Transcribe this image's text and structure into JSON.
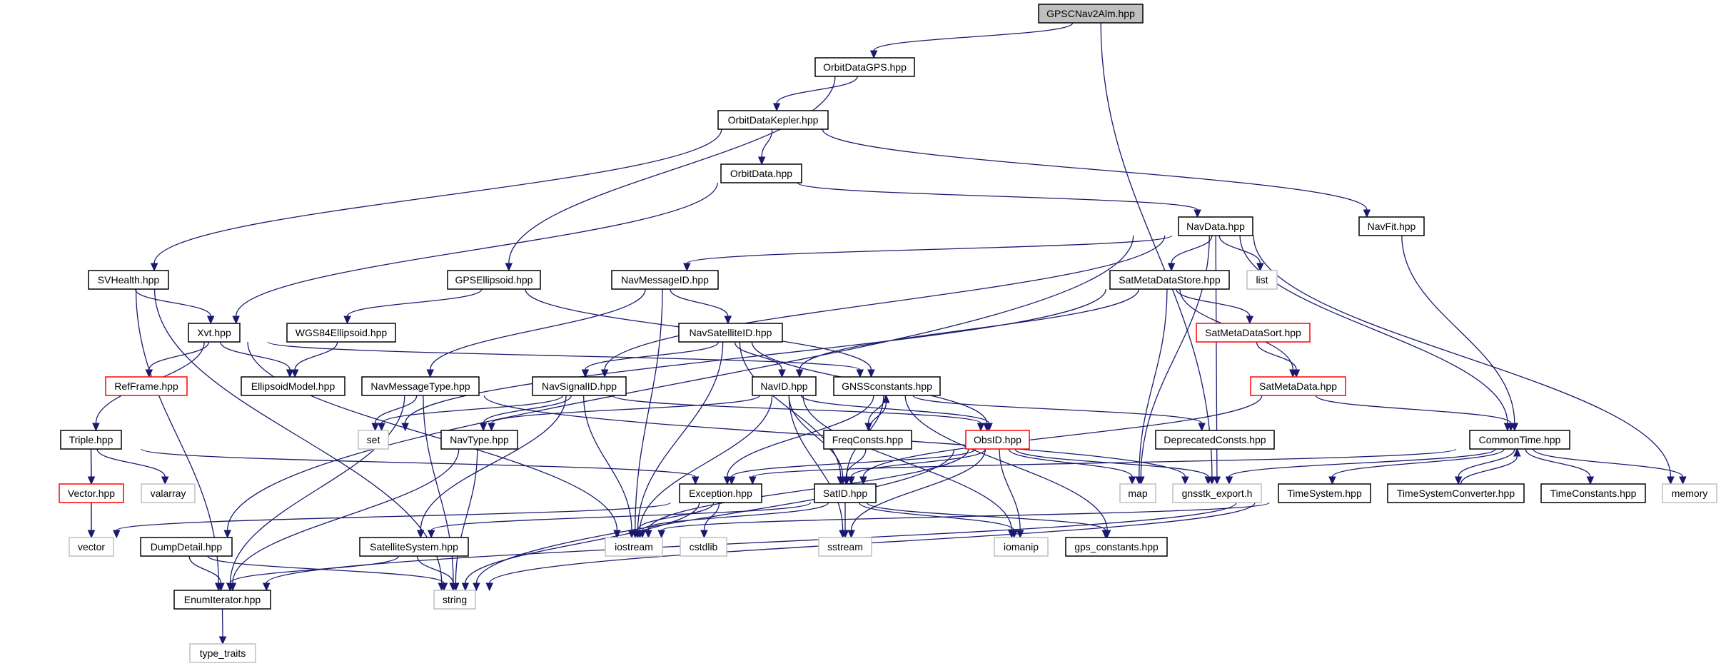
{
  "graph": {
    "edge_color": "#191970",
    "root_fill": "#bfbfbf",
    "nodes": [
      {
        "id": "GPSCNav2Alm",
        "label": "GPSCNav2Alm.hpp",
        "kind": "root"
      },
      {
        "id": "OrbitDataGPS",
        "label": "OrbitDataGPS.hpp",
        "kind": "project"
      },
      {
        "id": "OrbitDataKepler",
        "label": "OrbitDataKepler.hpp",
        "kind": "project"
      },
      {
        "id": "OrbitData",
        "label": "OrbitData.hpp",
        "kind": "project"
      },
      {
        "id": "NavData",
        "label": "NavData.hpp",
        "kind": "project"
      },
      {
        "id": "NavFit",
        "label": "NavFit.hpp",
        "kind": "project"
      },
      {
        "id": "SVHealth",
        "label": "SVHealth.hpp",
        "kind": "project"
      },
      {
        "id": "GPSEllipsoid",
        "label": "GPSEllipsoid.hpp",
        "kind": "project"
      },
      {
        "id": "NavMessageID",
        "label": "NavMessageID.hpp",
        "kind": "project"
      },
      {
        "id": "SatMetaDataStore",
        "label": "SatMetaDataStore.hpp",
        "kind": "project"
      },
      {
        "id": "list",
        "label": "list",
        "kind": "system"
      },
      {
        "id": "Xvt",
        "label": "Xvt.hpp",
        "kind": "project"
      },
      {
        "id": "WGS84Ellipsoid",
        "label": "WGS84Ellipsoid.hpp",
        "kind": "project"
      },
      {
        "id": "NavSatelliteID",
        "label": "NavSatelliteID.hpp",
        "kind": "project"
      },
      {
        "id": "SatMetaDataSort",
        "label": "SatMetaDataSort.hpp",
        "kind": "red"
      },
      {
        "id": "RefFrame",
        "label": "RefFrame.hpp",
        "kind": "red"
      },
      {
        "id": "EllipsoidModel",
        "label": "EllipsoidModel.hpp",
        "kind": "project"
      },
      {
        "id": "NavMessageType",
        "label": "NavMessageType.hpp",
        "kind": "project"
      },
      {
        "id": "NavSignalID",
        "label": "NavSignalID.hpp",
        "kind": "project"
      },
      {
        "id": "NavID",
        "label": "NavID.hpp",
        "kind": "project"
      },
      {
        "id": "GNSSconstants",
        "label": "GNSSconstants.hpp",
        "kind": "project"
      },
      {
        "id": "SatMetaData",
        "label": "SatMetaData.hpp",
        "kind": "red"
      },
      {
        "id": "Triple",
        "label": "Triple.hpp",
        "kind": "project"
      },
      {
        "id": "set",
        "label": "set",
        "kind": "system"
      },
      {
        "id": "NavType",
        "label": "NavType.hpp",
        "kind": "project"
      },
      {
        "id": "FreqConsts",
        "label": "FreqConsts.hpp",
        "kind": "project"
      },
      {
        "id": "ObsID",
        "label": "ObsID.hpp",
        "kind": "red"
      },
      {
        "id": "DeprecatedConsts",
        "label": "DeprecatedConsts.hpp",
        "kind": "project"
      },
      {
        "id": "CommonTime",
        "label": "CommonTime.hpp",
        "kind": "project"
      },
      {
        "id": "Vector",
        "label": "Vector.hpp",
        "kind": "red"
      },
      {
        "id": "valarray",
        "label": "valarray",
        "kind": "system"
      },
      {
        "id": "Exception",
        "label": "Exception.hpp",
        "kind": "project"
      },
      {
        "id": "SatID",
        "label": "SatID.hpp",
        "kind": "project"
      },
      {
        "id": "map",
        "label": "map",
        "kind": "system"
      },
      {
        "id": "gnsstk_export",
        "label": "gnsstk_export.h",
        "kind": "system"
      },
      {
        "id": "TimeSystem",
        "label": "TimeSystem.hpp",
        "kind": "project"
      },
      {
        "id": "TimeSystemConverter",
        "label": "TimeSystemConverter.hpp",
        "kind": "project"
      },
      {
        "id": "TimeConstants",
        "label": "TimeConstants.hpp",
        "kind": "project"
      },
      {
        "id": "memory",
        "label": "memory",
        "kind": "system"
      },
      {
        "id": "vector",
        "label": "vector",
        "kind": "system"
      },
      {
        "id": "DumpDetail",
        "label": "DumpDetail.hpp",
        "kind": "project"
      },
      {
        "id": "SatelliteSystem",
        "label": "SatelliteSystem.hpp",
        "kind": "project"
      },
      {
        "id": "iostream",
        "label": "iostream",
        "kind": "system"
      },
      {
        "id": "cstdlib",
        "label": "cstdlib",
        "kind": "system"
      },
      {
        "id": "sstream",
        "label": "sstream",
        "kind": "system"
      },
      {
        "id": "iomanip",
        "label": "iomanip",
        "kind": "system"
      },
      {
        "id": "gps_constants",
        "label": "gps_constants.hpp",
        "kind": "project"
      },
      {
        "id": "EnumIterator",
        "label": "EnumIterator.hpp",
        "kind": "project"
      },
      {
        "id": "string",
        "label": "string",
        "kind": "system"
      },
      {
        "id": "type_traits",
        "label": "type_traits",
        "kind": "system"
      }
    ],
    "edges": [
      [
        "GPSCNav2Alm",
        "OrbitDataGPS"
      ],
      [
        "GPSCNav2Alm",
        "gnsstk_export"
      ],
      [
        "OrbitDataGPS",
        "OrbitDataKepler"
      ],
      [
        "OrbitDataGPS",
        "GPSEllipsoid"
      ],
      [
        "OrbitDataKepler",
        "OrbitData"
      ],
      [
        "OrbitDataKepler",
        "SVHealth"
      ],
      [
        "OrbitDataKepler",
        "NavFit"
      ],
      [
        "OrbitData",
        "NavData"
      ],
      [
        "OrbitData",
        "Xvt"
      ],
      [
        "NavData",
        "SatMetaDataStore"
      ],
      [
        "NavData",
        "list"
      ],
      [
        "NavData",
        "NavMessageID"
      ],
      [
        "NavData",
        "NavSignalID"
      ],
      [
        "NavData",
        "DumpDetail"
      ],
      [
        "NavData",
        "CommonTime"
      ],
      [
        "NavData",
        "memory"
      ],
      [
        "NavData",
        "gnsstk_export"
      ],
      [
        "NavData",
        "map"
      ],
      [
        "NavFit",
        "CommonTime"
      ],
      [
        "SVHealth",
        "Xvt"
      ],
      [
        "SVHealth",
        "EnumIterator"
      ],
      [
        "SVHealth",
        "string"
      ],
      [
        "GPSEllipsoid",
        "WGS84Ellipsoid"
      ],
      [
        "GPSEllipsoid",
        "GNSSconstants"
      ],
      [
        "NavMessageID",
        "NavSatelliteID"
      ],
      [
        "NavMessageID",
        "NavMessageType"
      ],
      [
        "NavMessageID",
        "iostream"
      ],
      [
        "SatMetaDataStore",
        "SatMetaDataSort"
      ],
      [
        "SatMetaDataStore",
        "SatMetaData"
      ],
      [
        "SatMetaDataStore",
        "NavID"
      ],
      [
        "SatMetaDataStore",
        "set"
      ],
      [
        "SatMetaDataStore",
        "map"
      ],
      [
        "Xvt",
        "RefFrame"
      ],
      [
        "Xvt",
        "EllipsoidModel"
      ],
      [
        "Xvt",
        "Triple"
      ],
      [
        "Xvt",
        "GNSSconstants"
      ],
      [
        "Xvt",
        "iostream"
      ],
      [
        "WGS84Ellipsoid",
        "EllipsoidModel"
      ],
      [
        "NavSatelliteID",
        "NavSignalID"
      ],
      [
        "NavSatelliteID",
        "NavID"
      ],
      [
        "NavSatelliteID",
        "SatID"
      ],
      [
        "NavSatelliteID",
        "ObsID"
      ],
      [
        "NavSatelliteID",
        "iostream"
      ],
      [
        "SatMetaDataSort",
        "SatMetaData"
      ],
      [
        "NavMessageType",
        "set"
      ],
      [
        "NavMessageType",
        "string"
      ],
      [
        "NavMessageType",
        "EnumIterator"
      ],
      [
        "NavMessageType",
        "gnsstk_export"
      ],
      [
        "NavSignalID",
        "set"
      ],
      [
        "NavSignalID",
        "NavType"
      ],
      [
        "NavSignalID",
        "SatelliteSystem"
      ],
      [
        "NavSignalID",
        "ObsID"
      ],
      [
        "NavSignalID",
        "iostream"
      ],
      [
        "NavID",
        "NavType"
      ],
      [
        "NavID",
        "SatID"
      ],
      [
        "NavID",
        "ObsID"
      ],
      [
        "NavID",
        "iostream"
      ],
      [
        "NavID",
        "sstream"
      ],
      [
        "NavID",
        "iomanip"
      ],
      [
        "GNSSconstants",
        "FreqConsts"
      ],
      [
        "GNSSconstants",
        "Exception"
      ],
      [
        "GNSSconstants",
        "SatID"
      ],
      [
        "GNSSconstants",
        "DeprecatedConsts"
      ],
      [
        "GNSSconstants",
        "gps_constants"
      ],
      [
        "SatMetaData",
        "CommonTime"
      ],
      [
        "SatMetaData",
        "SatID"
      ],
      [
        "Triple",
        "Vector"
      ],
      [
        "Triple",
        "valarray"
      ],
      [
        "Triple",
        "vector"
      ],
      [
        "Triple",
        "Exception"
      ],
      [
        "FreqConsts",
        "GNSSconstants"
      ],
      [
        "FreqConsts",
        "SatID"
      ],
      [
        "ObsID",
        "Exception"
      ],
      [
        "ObsID",
        "SatID"
      ],
      [
        "ObsID",
        "map"
      ],
      [
        "ObsID",
        "gnsstk_export"
      ],
      [
        "ObsID",
        "iostream"
      ],
      [
        "ObsID",
        "sstream"
      ],
      [
        "ObsID",
        "iomanip"
      ],
      [
        "ObsID",
        "string"
      ],
      [
        "CommonTime",
        "TimeSystem"
      ],
      [
        "CommonTime",
        "TimeSystemConverter"
      ],
      [
        "CommonTime",
        "TimeConstants"
      ],
      [
        "CommonTime",
        "memory"
      ],
      [
        "CommonTime",
        "gnsstk_export"
      ],
      [
        "CommonTime",
        "Exception"
      ],
      [
        "TimeSystemConverter",
        "CommonTime"
      ],
      [
        "TimeSystem",
        "EnumIterator"
      ],
      [
        "TimeSystem",
        "string"
      ],
      [
        "TimeSystem",
        "iostream"
      ],
      [
        "Vector",
        "vector"
      ],
      [
        "Exception",
        "iostream"
      ],
      [
        "Exception",
        "cstdlib"
      ],
      [
        "Exception",
        "string"
      ],
      [
        "Exception",
        "vector"
      ],
      [
        "SatID",
        "SatelliteSystem"
      ],
      [
        "SatID",
        "iostream"
      ],
      [
        "SatID",
        "sstream"
      ],
      [
        "SatID",
        "iomanip"
      ],
      [
        "SatID",
        "gps_constants"
      ],
      [
        "DumpDetail",
        "EnumIterator"
      ],
      [
        "DumpDetail",
        "string"
      ],
      [
        "SatelliteSystem",
        "EnumIterator"
      ],
      [
        "SatelliteSystem",
        "string"
      ],
      [
        "NavType",
        "EnumIterator"
      ],
      [
        "NavType",
        "string"
      ],
      [
        "EnumIterator",
        "type_traits"
      ]
    ]
  }
}
